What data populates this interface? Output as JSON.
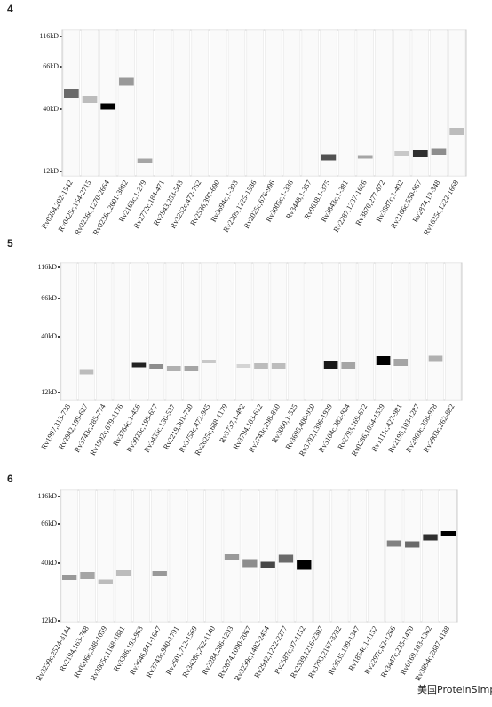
{
  "panels": [
    {
      "label": "4",
      "markers": [
        "116kD",
        "66kD",
        "40kD",
        "12kD"
      ],
      "lanes": [
        "Rv0284,202-1542",
        "Rv0425c,154-2715",
        "Rv0236c,1270-2664",
        "Rv0236c,2601-3882",
        "Rv2163c,1-279",
        "Rv2772c,184-471",
        "Rv2843,253-543",
        "Rv3252c,472-762",
        "Rv2536,397-690",
        "Rv3694c,1-303",
        "Rv2209,1225-1536",
        "Rv2025c,676-996",
        "Rv3005c,1-336",
        "Rv3448,1-357",
        "Rv0638,1-375",
        "Rv3843c,1-381",
        "Rv2287,1237-1626",
        "Rv3870,277-672",
        "Rv3887c,1-402",
        "Rv3166c,550-957",
        "Rv2874,19-348",
        "Rv1635c,1222-1668"
      ]
    },
    {
      "label": "5",
      "markers": [
        "116kD",
        "66kD",
        "40kD",
        "12kD"
      ],
      "lanes": [
        "Rv1997,313-738",
        "Rv2942,199-627",
        "Rv3743c,285-774",
        "Rv1992c,679-1176",
        "Rv3764c,1-456",
        "Rv3923c,199-657",
        "Rv3435c,130-537",
        "Rv2219,301-720",
        "Rv3758c,472-945",
        "Rv2625c,688-1179",
        "Rv3737,1-492",
        "Rv3794,103-612",
        "Rv2743c,298-810",
        "Rv3000,1-525",
        "Rv3695,400-930",
        "Rv3792,1396-1929",
        "Rv3104c,382-924",
        "Rv2793,169-672",
        "Rv0286,1054-1539",
        "Rv1111c,427-981",
        "Rv2195,103-1287",
        "Rv2869c,358-978",
        "Rv2903c,262-882"
      ]
    },
    {
      "label": "6",
      "markers": [
        "116kD",
        "66kD",
        "40kD",
        "12kD"
      ],
      "lanes": [
        "Rv3239c,2524-3144",
        "Rv2194,163-768",
        "Rv0206c,388-1059",
        "Rv3805c,1168-1881",
        "Rv3386,193-963",
        "Rv3646,841-1647",
        "Rv3743c,940-1791",
        "Rv2601,712-1569",
        "Rv3428c,262-1140",
        "Rv2284,286-1293",
        "Rv2874,1090-2067",
        "Rv3239c,1402-2454",
        "Rv2942,1222-2277",
        "Rv2587c,97-1152",
        "Rv2339,1216-2307",
        "Rv3793,2167-3282",
        "Rv3835,199-1347",
        "Rv1854c,1-1152",
        "Rv2297c,62-1266",
        "Rv3447c,235-1470",
        "Rv0169,103-1362",
        "Rv3894c,2887-4188"
      ]
    }
  ],
  "watermark": "美国ProteinSimple公司"
}
